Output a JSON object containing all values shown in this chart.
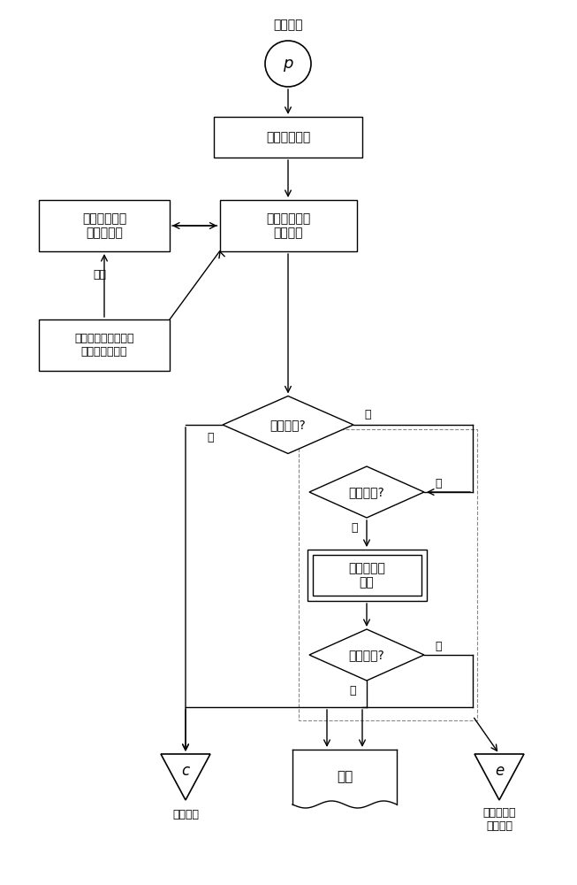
{
  "bg_color": "#ffffff",
  "line_color": "#000000",
  "text_color": "#000000",
  "font_size": 10,
  "small_font_size": 9,
  "title_top": "状态参数",
  "node_p": "p",
  "box1": "状态特征提取",
  "box2_left": "电动执行机构\n状态知识库",
  "box2_center": "电动执行机构\n诊断模型",
  "box3_bottom": "电动执行机构状态诊\n断与调试工作站",
  "diamond1": "运行正常?",
  "diamond2": "可自恢复?",
  "box4": "故障自恢复\n方案",
  "diamond3": "恢复成功?",
  "node_c": "c",
  "label_c": "正常运行",
  "box5": "存档",
  "node_e": "e",
  "label_e": "发故障指示\n人工处理",
  "label_yes1": "是",
  "label_no1": "否",
  "label_yes2": "是",
  "label_no2": "否",
  "label_yes3": "是",
  "label_no3": "否",
  "label_bus": "总线"
}
